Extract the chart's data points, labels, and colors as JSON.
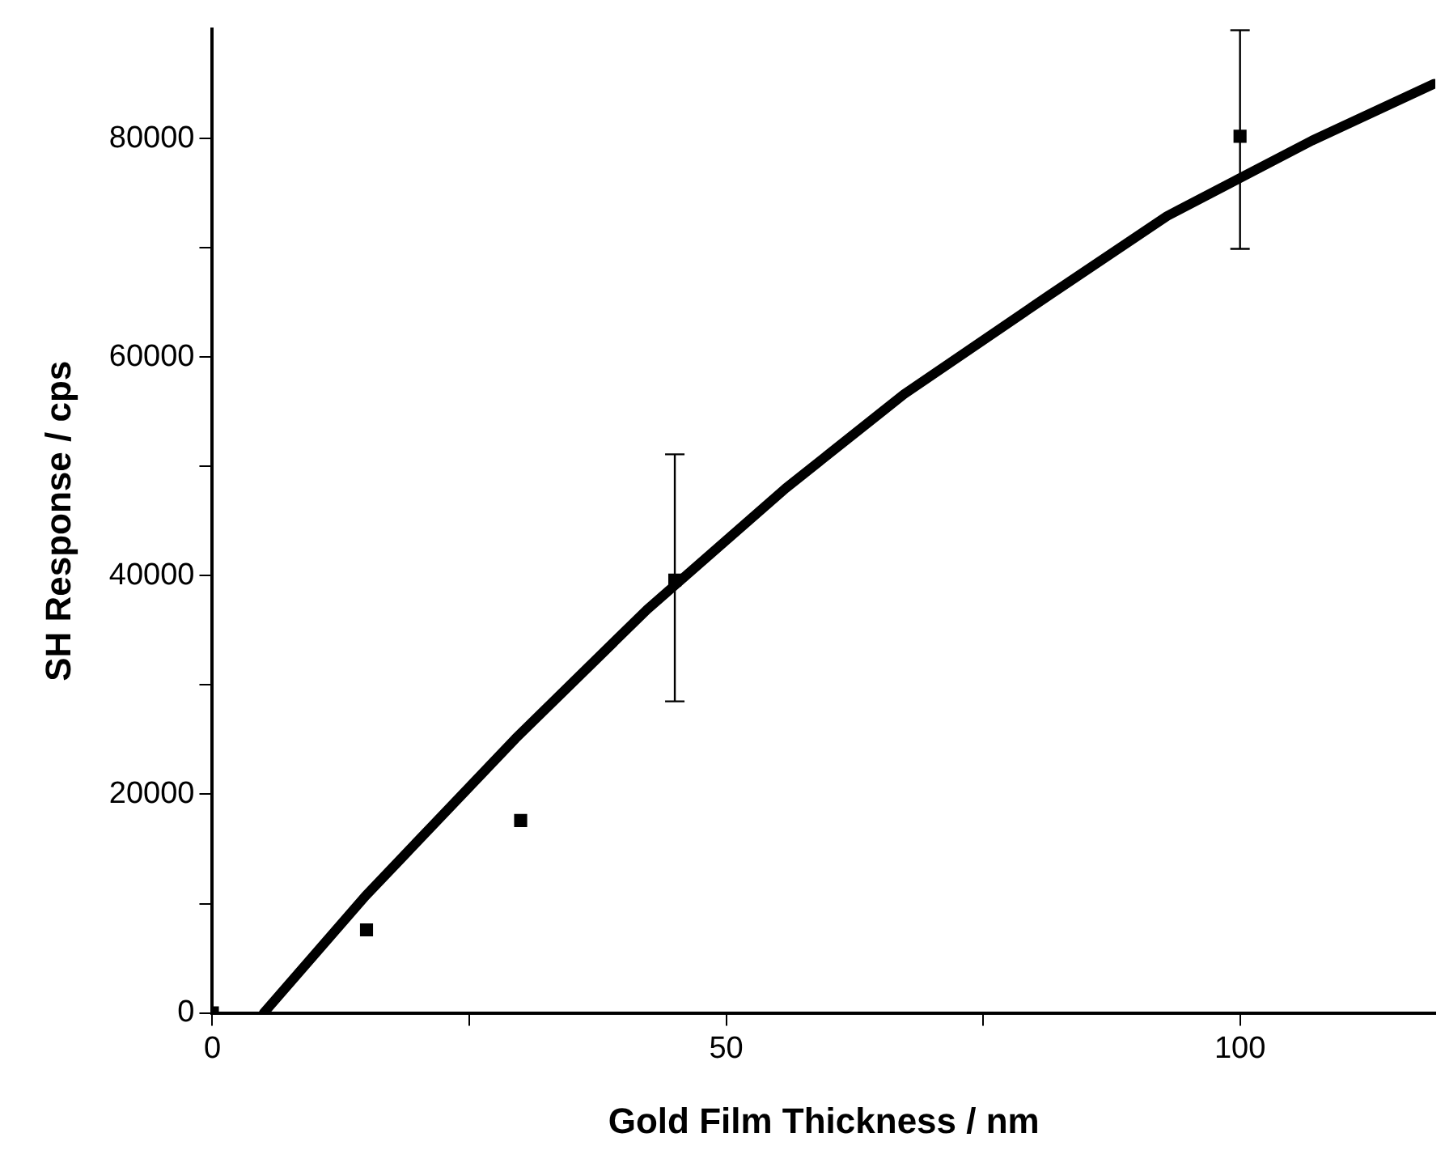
{
  "chart_data": {
    "type": "scatter",
    "xlabel": "Gold Film Thickness / nm",
    "ylabel": "SH Response / cps",
    "xlim": [
      0,
      119
    ],
    "xticks": [
      0,
      {
        "value": 25,
        "label": null
      },
      50,
      {
        "value": 75,
        "label": null
      },
      100
    ],
    "ylim": [
      0,
      90000
    ],
    "yticks": [
      0,
      {
        "value": 10000,
        "label": null
      },
      20000,
      {
        "value": 30000,
        "label": null
      },
      40000,
      {
        "value": 50000,
        "label": null
      },
      60000,
      {
        "value": 70000,
        "label": null
      },
      80000
    ],
    "grid": false,
    "legend": false,
    "series": [
      {
        "type": "scatter",
        "color": "#000000",
        "marker": "square",
        "x": [
          0,
          15,
          30,
          45,
          100
        ],
        "values": [
          0,
          7600,
          17600,
          39600,
          80200
        ],
        "errors": [
          null,
          null,
          null,
          [
            28500,
            51100
          ],
          [
            69900,
            89900
          ]
        ]
      },
      {
        "type": "line",
        "color": "#000000",
        "marker": "none",
        "line_style": "solid",
        "x": [
          5,
          14.9,
          29.5,
          42.3,
          55.8,
          67.3,
          81.5,
          92.9,
          107,
          118.9
        ],
        "values": [
          0,
          10700,
          25100,
          36900,
          48000,
          56600,
          65700,
          72900,
          79800,
          85000
        ]
      }
    ]
  }
}
